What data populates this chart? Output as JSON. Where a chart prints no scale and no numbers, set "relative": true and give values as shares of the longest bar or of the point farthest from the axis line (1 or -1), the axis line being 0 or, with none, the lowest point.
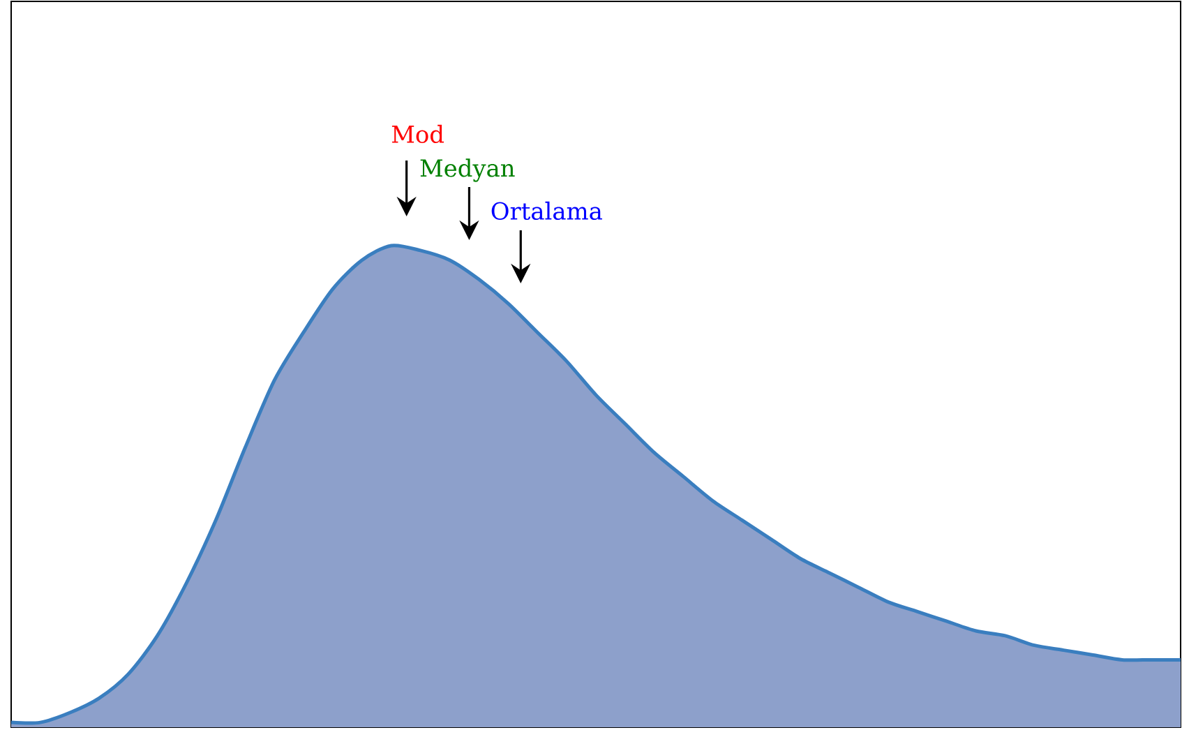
{
  "chart_data": {
    "type": "area",
    "relative": true,
    "categories": [
      null,
      null,
      null,
      null,
      null,
      null,
      null,
      null,
      null,
      null,
      null,
      null,
      null,
      null,
      null,
      null,
      null,
      null,
      null,
      null,
      null,
      null,
      null,
      null,
      null,
      null,
      null,
      null,
      null,
      null,
      null,
      null,
      null,
      null,
      null,
      null,
      null,
      null,
      null,
      null,
      null
    ],
    "series": [
      {
        "color": "#8da0cb",
        "values": [
          0.01,
          0.01,
          0.03,
          0.06,
          0.11,
          0.19,
          0.3,
          0.43,
          0.58,
          0.72,
          0.82,
          0.91,
          0.97,
          1.0,
          0.99,
          0.97,
          0.93,
          0.88,
          0.82,
          0.76,
          0.69,
          0.63,
          0.57,
          0.52,
          0.47,
          0.43,
          0.39,
          0.35,
          0.32,
          0.29,
          0.26,
          0.24,
          0.22,
          0.2,
          0.19,
          0.17,
          0.16,
          0.15,
          0.14,
          0.14,
          0.14
        ]
      }
    ],
    "annotations": [
      "Mod",
      "Medyan",
      "Ortalama"
    ]
  }
}
